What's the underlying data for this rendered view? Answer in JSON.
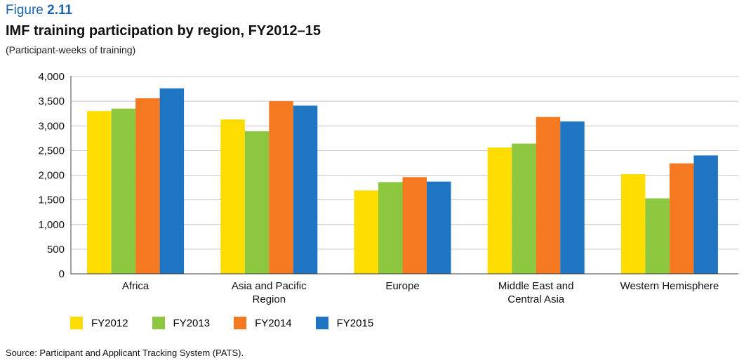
{
  "figure": {
    "label_prefix": "Figure",
    "label_number": "2.11",
    "title": "IMF training participation by region, FY2012–15",
    "subtitle": "(Participant-weeks of training)",
    "source": "Source: Participant and Applicant Tracking System (PATS)."
  },
  "chart_data": {
    "type": "bar",
    "title": "IMF training participation by region, FY2012–15",
    "subtitle": "(Participant-weeks of training)",
    "xlabel": "",
    "ylabel": "",
    "ylim": [
      0,
      4000
    ],
    "yticks": [
      0,
      500,
      1000,
      1500,
      2000,
      2500,
      3000,
      3500,
      4000
    ],
    "ytick_labels": [
      "0",
      "500",
      "1,000",
      "1,500",
      "2,000",
      "2,500",
      "3,000",
      "3,500",
      "4,000"
    ],
    "grid": true,
    "legend_position": "bottom-left",
    "categories": [
      [
        "Africa"
      ],
      [
        "Asia and Pacific",
        "Region"
      ],
      [
        "Europe"
      ],
      [
        "Middle East and",
        "Central Asia"
      ],
      [
        "Western Hemisphere"
      ]
    ],
    "series": [
      {
        "name": "FY2012",
        "color": "#ffdd00",
        "values": [
          3300,
          3130,
          1690,
          2560,
          2020
        ]
      },
      {
        "name": "FY2013",
        "color": "#8dc63f",
        "values": [
          3350,
          2890,
          1860,
          2640,
          1530
        ]
      },
      {
        "name": "FY2014",
        "color": "#f47920",
        "values": [
          3560,
          3500,
          1960,
          3180,
          2240
        ]
      },
      {
        "name": "FY2015",
        "color": "#1f75c1",
        "values": [
          3760,
          3410,
          1870,
          3090,
          2400
        ]
      }
    ]
  }
}
